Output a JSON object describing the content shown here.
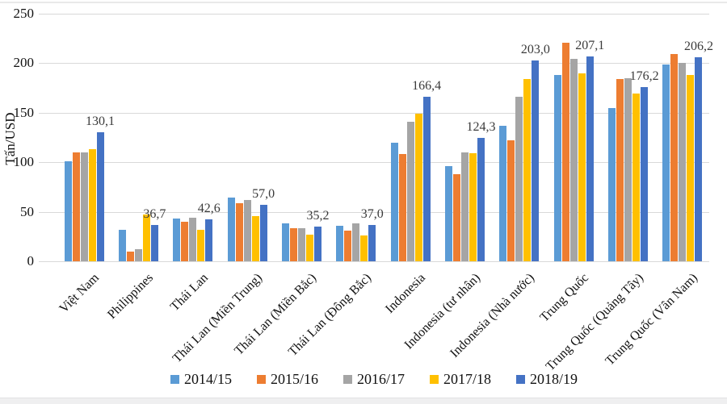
{
  "chart_data": {
    "type": "bar",
    "variant": "grouped-vertical",
    "title": "",
    "xlabel": "",
    "ylabel": "Tấn/USD",
    "ylim": [
      0,
      250
    ],
    "yticks": [
      250,
      200,
      150,
      100,
      50,
      0
    ],
    "grid": true,
    "grid_color": "#d9d9d9",
    "legend_position": "bottom",
    "decimal_separator": ",",
    "categories": [
      "Việt Nam",
      "Philippines",
      "Thái Lan",
      "Thái Lan (Miền Trung)",
      "Thái Lan (Miền Bắc)",
      "Thái Lan (Đông Bắc)",
      "Indonesia",
      "Indonesia (tư nhân)",
      "Indonesia (Nhà nước)",
      "Trung Quốc",
      "Trung Quốc (Quảng Tây)",
      "Trung Quốc (Vân Nam)"
    ],
    "series": [
      {
        "name": "2014/15",
        "color": "#5B9BD5",
        "values": [
          101,
          32,
          43,
          64,
          38,
          36,
          120,
          96,
          137,
          188,
          155,
          199
        ]
      },
      {
        "name": "2015/16",
        "color": "#ED7D31",
        "values": [
          110,
          10,
          40,
          59,
          33,
          31,
          108,
          88,
          122,
          221,
          184,
          209
        ]
      },
      {
        "name": "2016/17",
        "color": "#A5A5A5",
        "values": [
          110,
          12,
          44,
          62,
          33,
          38,
          141,
          110,
          166,
          204,
          185,
          200
        ]
      },
      {
        "name": "2017/18",
        "color": "#FFC000",
        "values": [
          113,
          47,
          32,
          46,
          27,
          26,
          149,
          109,
          184,
          190,
          169,
          188
        ]
      },
      {
        "name": "2018/19",
        "color": "#4472C4",
        "values": [
          130.1,
          36.7,
          42.6,
          57.0,
          35.2,
          37.0,
          166.4,
          124.3,
          203.0,
          207.1,
          176.2,
          206.2
        ],
        "data_labels": [
          "130,1",
          "36,7",
          "42,6",
          "57,0",
          "35,2",
          "37,0",
          "166,4",
          "124,3",
          "203,0",
          "207,1",
          "176,2",
          "206,2"
        ]
      }
    ]
  }
}
